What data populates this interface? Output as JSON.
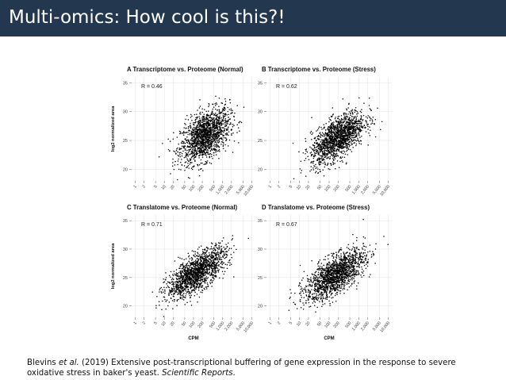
{
  "slide": {
    "title": "Multi-omics: How cool is this?!",
    "citation": {
      "author": "Blevins",
      "etal": "et al.",
      "rest": "(2019) Extensive post-transcriptional buffering of gene expression in the response to severe oxidative stress in baker's yeast.",
      "journal": "Scientific Reports",
      "end": "."
    },
    "colors": {
      "title_bar": "#23374f",
      "title_text": "#ffffff",
      "points": "#000000",
      "grid": "#e6e6e6"
    }
  },
  "chart_data": [
    {
      "type": "scatter",
      "letter": "A",
      "title": "Transcriptome vs. Proteome (Normal)",
      "annotation": "R = 0.46",
      "ylabel": "log2 normalized area",
      "xlabel": "",
      "xscale": "log",
      "xticks": [
        "1",
        "2",
        "5",
        "10",
        "20",
        "50",
        "100",
        "200",
        "500",
        "1,000",
        "2,000",
        "5,000",
        "10,000"
      ],
      "yticks": [
        "20",
        "25",
        "30",
        "35"
      ],
      "ylim": [
        18,
        36
      ],
      "grid": true,
      "cloud": {
        "x_center_log10": 2.4,
        "y_center": 25.8,
        "sd_x_log10": 0.42,
        "sd_y": 2.3,
        "correlation": 0.46,
        "n": 1600
      }
    },
    {
      "type": "scatter",
      "letter": "B",
      "title": "Transcriptome vs. Proteome (Stress)",
      "annotation": "R = 0.62",
      "ylabel": "",
      "xlabel": "",
      "xscale": "log",
      "xticks": [
        "1",
        "2",
        "5",
        "10",
        "20",
        "50",
        "100",
        "200",
        "500",
        "1,000",
        "2,000",
        "5,000",
        "10,000"
      ],
      "yticks": [
        "20",
        "25",
        "30",
        "35"
      ],
      "ylim": [
        18,
        36
      ],
      "grid": true,
      "cloud": {
        "x_center_log10": 2.3,
        "y_center": 25.5,
        "sd_x_log10": 0.45,
        "sd_y": 2.2,
        "correlation": 0.62,
        "n": 1600
      }
    },
    {
      "type": "scatter",
      "letter": "C",
      "title": "Translatome vs. Proteome (Normal)",
      "annotation": "R = 0.71",
      "ylabel": "log2 normalized area",
      "xlabel": "CPM",
      "xscale": "log",
      "xticks": [
        "1",
        "2",
        "5",
        "10",
        "20",
        "50",
        "100",
        "200",
        "500",
        "1,000",
        "2,000",
        "5,000",
        "10,000"
      ],
      "yticks": [
        "20",
        "25",
        "30",
        "35"
      ],
      "ylim": [
        18,
        36
      ],
      "grid": true,
      "cloud": {
        "x_center_log10": 2.1,
        "y_center": 25.8,
        "sd_x_log10": 0.5,
        "sd_y": 2.2,
        "correlation": 0.71,
        "n": 1600
      }
    },
    {
      "type": "scatter",
      "letter": "D",
      "title": "Translatome vs. Proteome (Stress)",
      "annotation": "R = 0.67",
      "ylabel": "",
      "xlabel": "CPM",
      "xscale": "log",
      "xticks": [
        "1",
        "2",
        "5",
        "10",
        "20",
        "50",
        "100",
        "200",
        "500",
        "1,000",
        "2,000",
        "5,000",
        "10,000"
      ],
      "yticks": [
        "20",
        "25",
        "30",
        "35"
      ],
      "ylim": [
        18,
        36
      ],
      "grid": true,
      "cloud": {
        "x_center_log10": 2.2,
        "y_center": 25.4,
        "sd_x_log10": 0.5,
        "sd_y": 2.2,
        "correlation": 0.67,
        "n": 1600
      }
    }
  ]
}
